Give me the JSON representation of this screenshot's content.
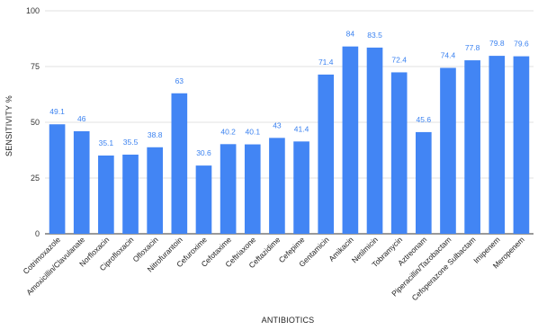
{
  "chart_data": {
    "type": "bar",
    "xlabel": "ANTIBIOTICS",
    "ylabel": "SENSITIVITY %",
    "ylim": [
      0,
      100
    ],
    "yticks": [
      0,
      25,
      50,
      75,
      100
    ],
    "grid": "horizontal",
    "bar_color": "#4285f4",
    "label_color": "#3b82f0",
    "categories": [
      "Cotrimoxazole",
      "Amoxicillin/Clavulanate",
      "Norfloxacin",
      "Ciprofloxacin",
      "Ofloxacin",
      "Nitrofurantoin",
      "Cefuroxime",
      "Cefotaxime",
      "Ceftriaxone",
      "Ceftazidime",
      "Cefepime",
      "Gentamicin",
      "Amikacin",
      "Netilmicin",
      "Tobramycin",
      "Aztreonam",
      "Piperacillin/Tazobactam",
      "Cefoperazone Sulbactam",
      "Imipenem",
      "Meropenem"
    ],
    "values": [
      49.1,
      46,
      35.1,
      35.5,
      38.8,
      63,
      30.6,
      40.2,
      40.1,
      43,
      41.4,
      71.4,
      84,
      83.5,
      72.4,
      45.6,
      74.4,
      77.8,
      79.8,
      79.6
    ]
  }
}
